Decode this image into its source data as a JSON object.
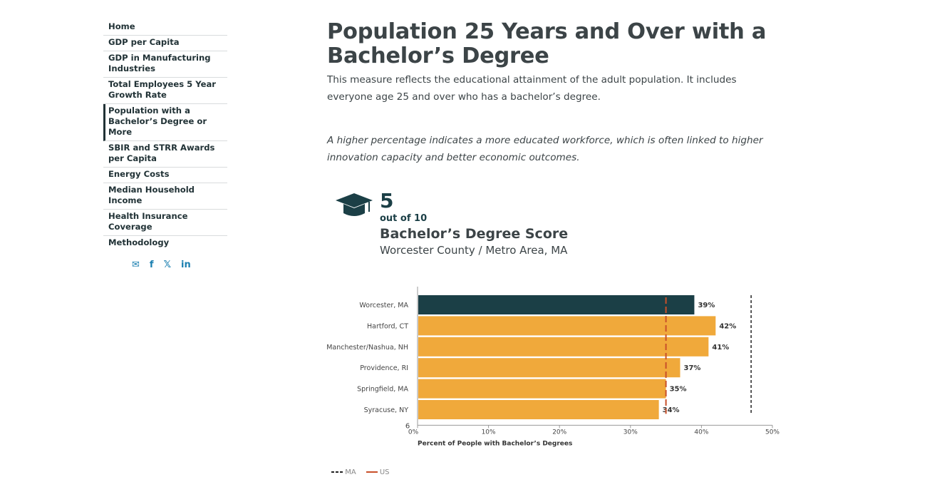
{
  "sidebar": {
    "items": [
      {
        "label": "Home"
      },
      {
        "label": "GDP per Capita"
      },
      {
        "label": "GDP in Manufacturing Industries"
      },
      {
        "label": "Total Employees 5 Year Growth Rate"
      },
      {
        "label": "Population with a Bachelor’s Degree or More",
        "active": true
      },
      {
        "label": "SBIR and STRR Awards per Capita"
      },
      {
        "label": "Energy Costs"
      },
      {
        "label": "Median Household Income"
      },
      {
        "label": "Health Insurance Coverage"
      },
      {
        "label": "Methodology"
      }
    ],
    "social": {
      "email": "✉",
      "facebook": "f",
      "x": "𝕏",
      "linkedin": "in"
    }
  },
  "main": {
    "title": "Population 25 Years and Over with a Bachelor’s Degree",
    "description": "This measure reflects the educational attainment of the adult population. It includes everyone age 25 and over who has a bachelor’s degree.",
    "note": "A higher percentage indicates a more educated workforce, which is often linked to higher innovation capacity and better economic outcomes.",
    "score": {
      "value": "5",
      "out_of": "out of 10",
      "name": "Bachelor’s Degree Score",
      "area": "Worcester County / Metro Area, MA"
    }
  },
  "chart_data": {
    "type": "bar",
    "orientation": "horizontal",
    "categories": [
      "Worcester, MA",
      "Hartford, CT",
      "Manchester/Nashua, NH",
      "Providence, RI",
      "Springfield, MA",
      "Syracuse, NY"
    ],
    "values": [
      39,
      42,
      41,
      37,
      35,
      34
    ],
    "value_labels": [
      "39%",
      "42%",
      "41%",
      "37%",
      "35%",
      "34%"
    ],
    "highlight_index": 0,
    "colors": {
      "highlight": "#1b3f46",
      "default": "#f0a93b",
      "us_line": "#c9502a",
      "ma_line": "#222222",
      "axis_text": "#444444"
    },
    "xlim": [
      0,
      50
    ],
    "xticks": [
      "0%",
      "10%",
      "20%",
      "30%",
      "40%",
      "50%"
    ],
    "xlabel": "Percent of People with Bachelor’s Degrees",
    "stray_label": "6",
    "reference_lines": [
      {
        "name": "MA",
        "value": 47,
        "style": "dashed"
      },
      {
        "name": "US",
        "value": 35,
        "style": "dashed"
      }
    ],
    "legend": [
      "MA",
      "US"
    ]
  }
}
